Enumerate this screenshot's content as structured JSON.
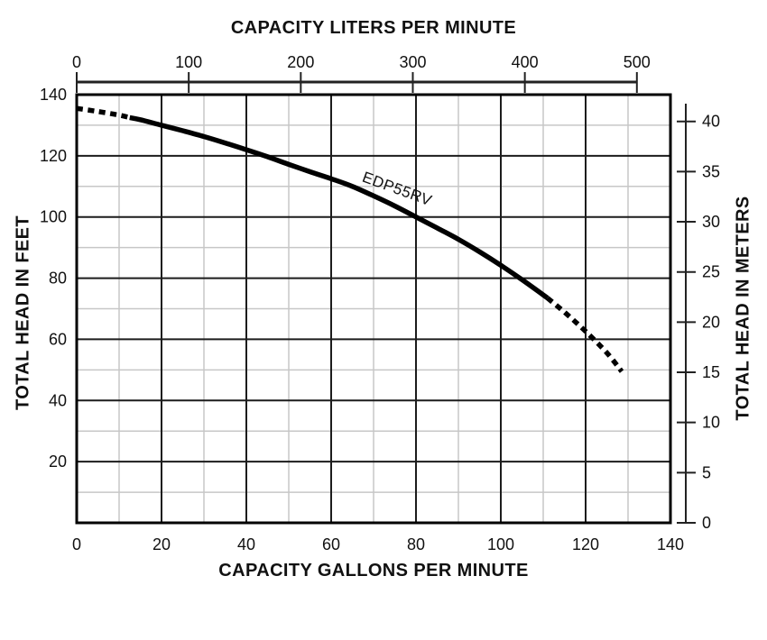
{
  "chart_data": {
    "type": "line",
    "title": "",
    "colors": {
      "curve": "#000000",
      "plot_border": "#000000",
      "major_grid": "#1c1c1c",
      "minor_grid": "#c7c7c7",
      "axis_line": "#222222",
      "text": "#111111",
      "background": "#ffffff"
    },
    "axes": {
      "bottom": {
        "title": "CAPACITY GALLONS PER MINUTE",
        "min": 0,
        "max": 140,
        "tick_labels": [
          0,
          20,
          40,
          60,
          80,
          100,
          120,
          140
        ]
      },
      "top": {
        "title": "CAPACITY LITERS PER MINUTE",
        "tick_labels": [
          0,
          100,
          200,
          300,
          400,
          500
        ],
        "liters_per_gallon": 3.78541
      },
      "left": {
        "title": "TOTAL HEAD IN FEET",
        "min": 0,
        "max": 140,
        "tick_labels": [
          20,
          40,
          60,
          80,
          100,
          120,
          140
        ]
      },
      "right": {
        "title": "TOTAL HEAD IN METERS",
        "tick_labels": [
          0,
          5,
          10,
          15,
          20,
          25,
          30,
          35,
          40
        ],
        "feet_per_meter": 3.28084
      }
    },
    "grid": {
      "x_major": [
        20,
        40,
        60,
        80,
        100,
        120
      ],
      "x_minor": [
        10,
        30,
        50,
        70,
        90,
        110,
        130
      ],
      "y_major": [
        20,
        40,
        60,
        80,
        100,
        120
      ],
      "y_minor": [
        10,
        30,
        50,
        70,
        90,
        110,
        130
      ]
    },
    "series": [
      {
        "name": "EDP55RV",
        "x_units": "gallons per minute",
        "y_units": "feet of head",
        "label": {
          "text": "EDP55RV",
          "at_gpm": 75.5,
          "at_feet": 109,
          "rotation_deg": 20
        },
        "segments": [
          {
            "style": "dashed",
            "points": [
              [
                0,
                135.5
              ],
              [
                5,
                134.5
              ],
              [
                10,
                133.3
              ],
              [
                12.5,
                132.5
              ]
            ]
          },
          {
            "style": "solid",
            "points": [
              [
                12.5,
                132.5
              ],
              [
                15,
                131.8
              ],
              [
                20,
                130
              ],
              [
                25,
                128.2
              ],
              [
                30,
                126.3
              ],
              [
                35,
                124.2
              ],
              [
                40,
                122
              ],
              [
                45,
                119.7
              ],
              [
                50,
                117.2
              ],
              [
                55,
                114.8
              ],
              [
                60,
                112.5
              ],
              [
                65,
                110
              ],
              [
                70,
                106.9
              ],
              [
                75,
                103.6
              ],
              [
                80,
                100
              ],
              [
                85,
                96.4
              ],
              [
                90,
                92.7
              ],
              [
                95,
                88.6
              ],
              [
                100,
                84.2
              ],
              [
                105,
                79.5
              ],
              [
                111,
                73.5
              ]
            ]
          },
          {
            "style": "dashed",
            "points": [
              [
                111,
                73.5
              ],
              [
                115,
                68.9
              ],
              [
                120,
                62.6
              ],
              [
                125,
                55.6
              ],
              [
                128.5,
                49.5
              ]
            ]
          }
        ]
      }
    ]
  }
}
